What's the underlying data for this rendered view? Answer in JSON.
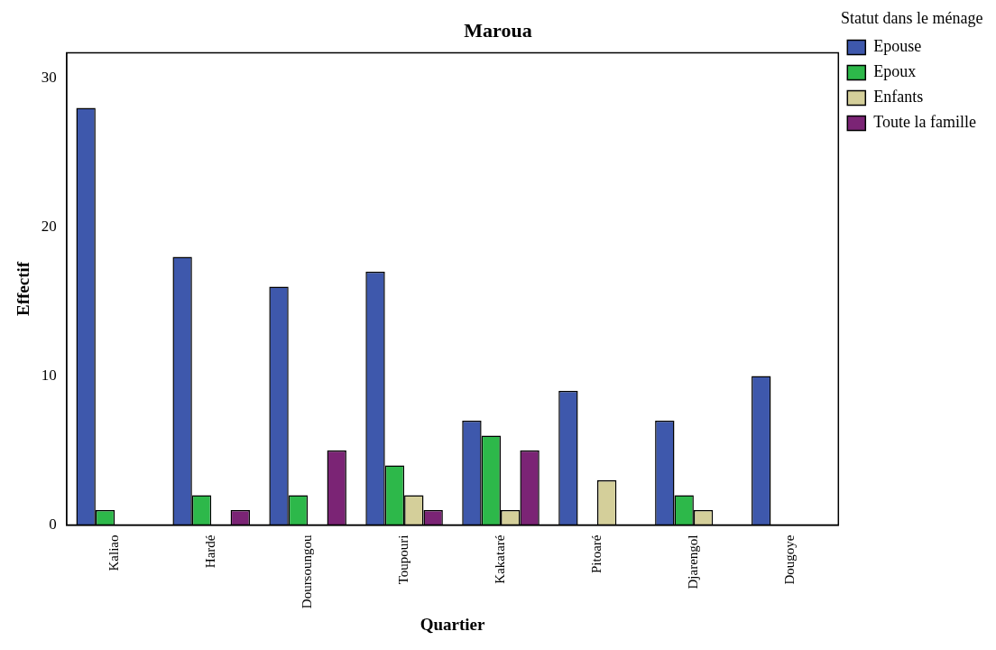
{
  "chart_data": {
    "type": "bar",
    "title": "Maroua",
    "xlabel": "Quartier",
    "ylabel": "Effectif",
    "legend_title": "Statut dans le ménage",
    "categories": [
      "Kaliao",
      "Hardé",
      "Doursoungou",
      "Toupouri",
      "Kakataré",
      "Pitoaré",
      "Djarengol",
      "Dougoye"
    ],
    "series": [
      {
        "name": "Epouse",
        "color": "#3e58ac",
        "values": [
          28,
          18,
          16,
          17,
          7,
          9,
          7,
          10
        ]
      },
      {
        "name": "Epoux",
        "color": "#2db84a",
        "values": [
          1,
          2,
          2,
          4,
          6,
          null,
          2,
          null
        ]
      },
      {
        "name": "Enfants",
        "color": "#d4cf9a",
        "values": [
          null,
          null,
          null,
          2,
          1,
          3,
          1,
          null
        ]
      },
      {
        "name": "Toute la famille",
        "color": "#7b2475",
        "values": [
          null,
          1,
          5,
          1,
          5,
          null,
          null,
          null
        ]
      }
    ],
    "ylim": [
      0,
      31.7
    ],
    "yticks": [
      0,
      10,
      20,
      30
    ],
    "grid": false,
    "legend": "right"
  }
}
